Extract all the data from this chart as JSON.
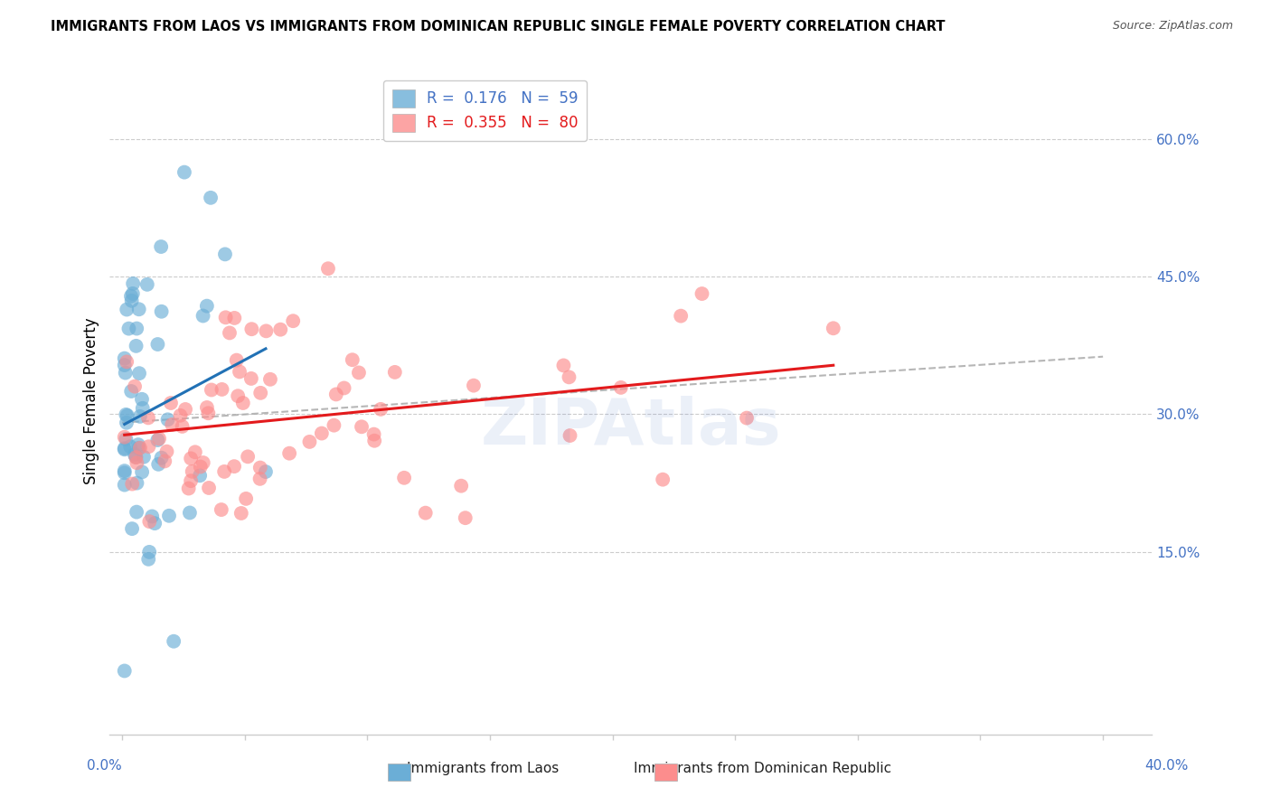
{
  "title": "IMMIGRANTS FROM LAOS VS IMMIGRANTS FROM DOMINICAN REPUBLIC SINGLE FEMALE POVERTY CORRELATION CHART",
  "source": "Source: ZipAtlas.com",
  "ylabel": "Single Female Poverty",
  "laos_R": "0.176",
  "laos_N": "59",
  "dr_R": "0.355",
  "dr_N": "80",
  "laos_color": "#6baed6",
  "dr_color": "#fc8d8d",
  "laos_line_color": "#2171b5",
  "dr_line_color": "#e31a1c",
  "gray_dash_color": "#aaaaaa",
  "right_tick_color": "#4472c4",
  "ylim": [
    -0.05,
    0.68
  ],
  "xlim": [
    -0.005,
    0.42
  ],
  "y_ticks": [
    0.15,
    0.3,
    0.45,
    0.6
  ],
  "y_tick_labels": [
    "15.0%",
    "30.0%",
    "45.0%",
    "60.0%"
  ]
}
